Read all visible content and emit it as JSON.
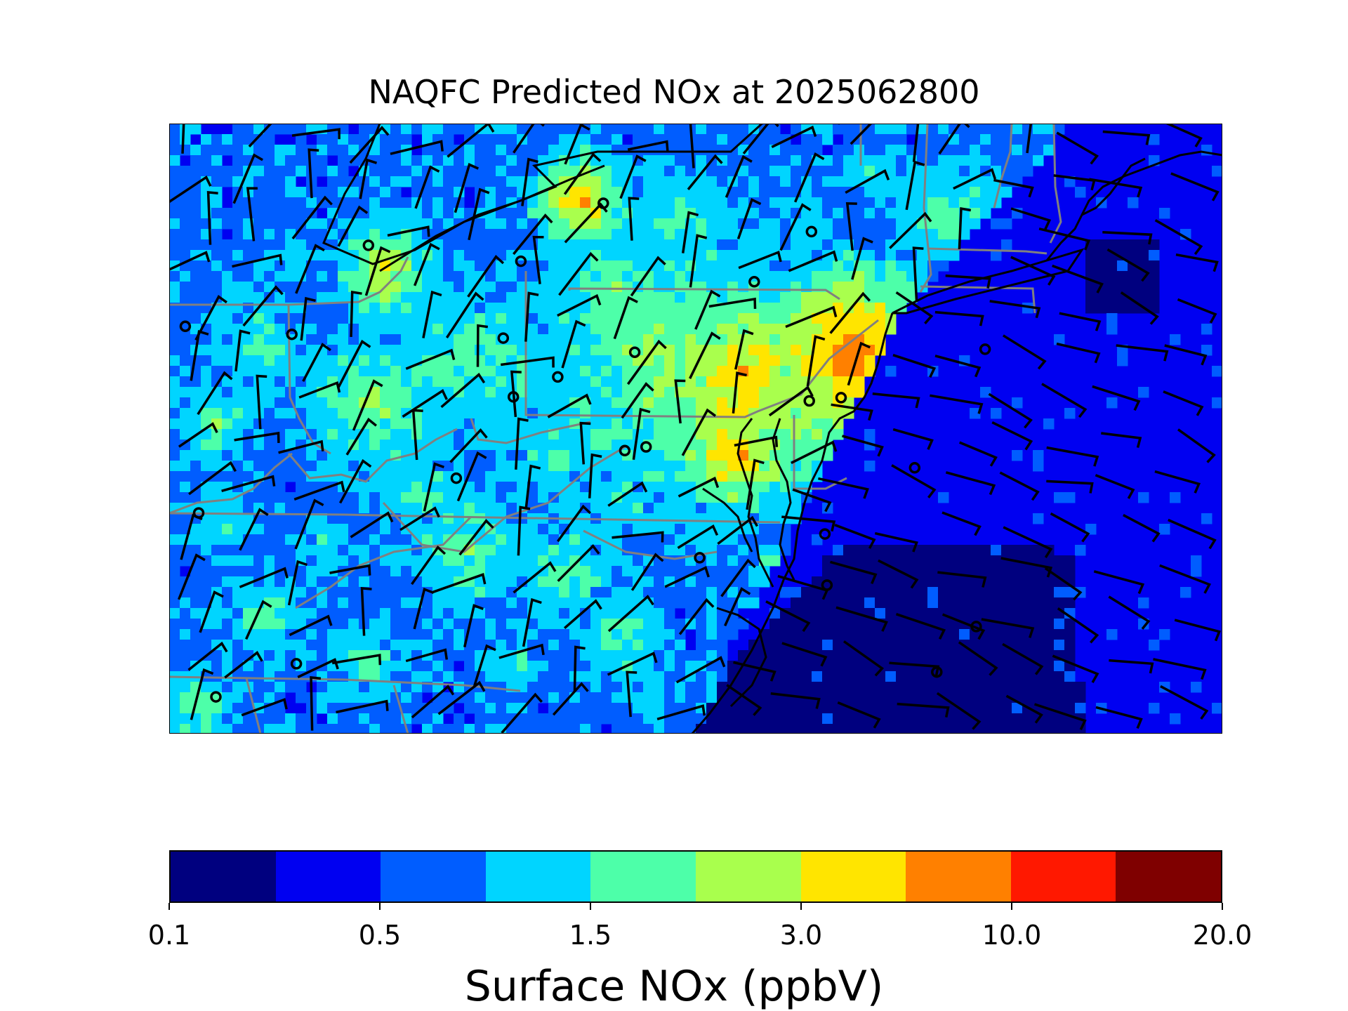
{
  "title": "NAQFC Predicted NOx at 2025062800",
  "colorbar": {
    "label": "Surface NOx (ppbV)",
    "tick_labels": [
      "0.1",
      "0.5",
      "1.5",
      "3.0",
      "10.0",
      "20.0"
    ],
    "colors": [
      "#00007f",
      "#0000f1",
      "#005dff",
      "#00d5ff",
      "#4dffa9",
      "#a9ff4d",
      "#ffe500",
      "#ff8000",
      "#ff1800",
      "#7f0000"
    ]
  },
  "map": {
    "region": "Mid-Atlantic / Northeast US",
    "background_level": 1,
    "ocean_level": 1,
    "station_marker": "hollow circle",
    "wind_markers": "wind barbs",
    "state_border_color": "#808080",
    "coast_border_color": "#000000"
  }
}
